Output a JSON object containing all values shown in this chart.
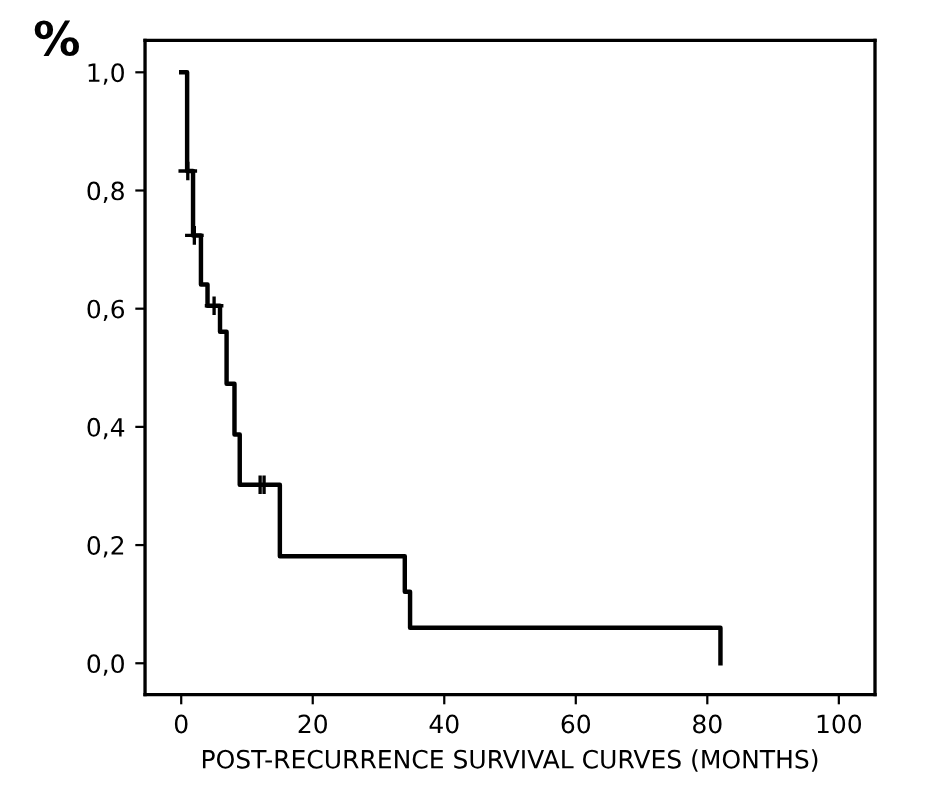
{
  "chart_data": {
    "type": "step",
    "xlabel": "POST-RECURRENCE SURVIVAL CURVES (MONTHS)",
    "ylabel": "%",
    "series": [
      {
        "color": "#000000",
        "x": [
          0,
          0.9,
          1.8,
          3,
          4,
          5.9,
          6.9,
          8.1,
          8.9,
          15,
          34,
          34.8,
          82
        ],
        "values": [
          1.0,
          0.833,
          0.724,
          0.641,
          0.605,
          0.561,
          0.473,
          0.387,
          0.302,
          0.181,
          0.121,
          0.06,
          0.0
        ]
      },
      {
        "type": "scatter",
        "color": "#000000",
        "marker": "cross",
        "x": [
          1,
          2,
          5,
          12,
          12.6
        ],
        "values": [
          0.833,
          0.724,
          0.605,
          0.302,
          0.302
        ]
      }
    ],
    "xlim": [
      -5.5,
      105.5
    ],
    "xticks": [
      0,
      20,
      40,
      60,
      80,
      100
    ],
    "ylim": [
      -0.053,
      1.054
    ],
    "yticks": [
      {
        "value": 0,
        "label": "0,0"
      },
      {
        "value": 0.2,
        "label": "0,2"
      },
      {
        "value": 0.4,
        "label": "0,4"
      },
      {
        "value": 0.6,
        "label": "0,6"
      },
      {
        "value": 0.8,
        "label": "0,8"
      },
      {
        "value": 1.0,
        "label": "1,0"
      }
    ],
    "grid": false,
    "legend": false
  }
}
